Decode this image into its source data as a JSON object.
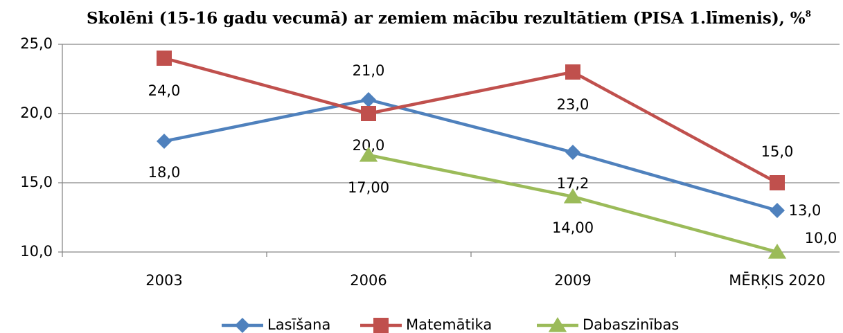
{
  "chart_data": {
    "type": "line",
    "title": "Skolēni (15-16 gadu vecumā) ar zemiem mācību rezultātiem (PISA 1.līmenis), %",
    "title_superscript": "8",
    "categories": [
      "2003",
      "2006",
      "2009",
      "MĒRĶIS 2020"
    ],
    "series": [
      {
        "name": "Lasīšana",
        "color": "#4f81bd",
        "marker": "diamond",
        "values": [
          18.0,
          21.0,
          17.2,
          13.0
        ],
        "value_labels": [
          "18,0",
          "21,0",
          "17,2",
          "13,0"
        ]
      },
      {
        "name": "Matemātika",
        "color": "#c0504d",
        "marker": "square",
        "values": [
          24.0,
          20.0,
          23.0,
          15.0
        ],
        "value_labels": [
          "24,0",
          "20,0",
          "23,0",
          "15,0"
        ]
      },
      {
        "name": "Dabaszinības",
        "color": "#9bbb59",
        "marker": "triangle",
        "values": [
          null,
          17,
          14,
          10
        ],
        "value_labels": [
          null,
          "17,00",
          "14,00",
          "10,0"
        ]
      }
    ],
    "ylim": [
      10,
      25
    ],
    "yticks": [
      {
        "value": 10,
        "label": "10,0"
      },
      {
        "value": 15,
        "label": "15,0"
      },
      {
        "value": 20,
        "label": "20,0"
      },
      {
        "value": 25,
        "label": "25,0"
      }
    ],
    "grid": true,
    "legend": "bottom"
  }
}
